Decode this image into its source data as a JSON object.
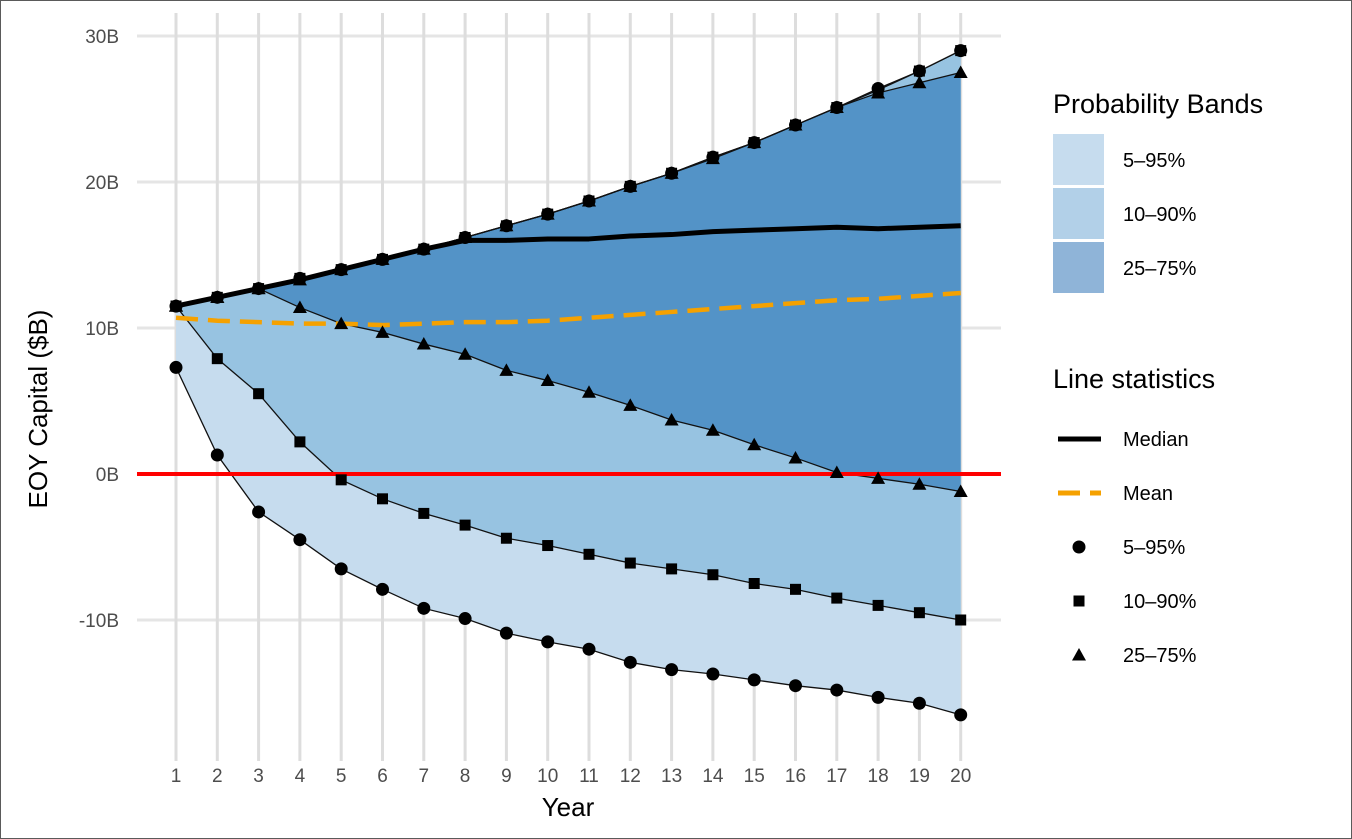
{
  "chart_data": {
    "type": "area",
    "title": "",
    "xlabel": "Year",
    "ylabel": "EOY Capital ($B)",
    "x": [
      1,
      2,
      3,
      4,
      5,
      6,
      7,
      8,
      9,
      10,
      11,
      12,
      13,
      14,
      15,
      16,
      17,
      18,
      19,
      20
    ],
    "x_tick_labels": [
      "1",
      "2",
      "3",
      "4",
      "5",
      "6",
      "7",
      "8",
      "9",
      "10",
      "11",
      "12",
      "13",
      "14",
      "15",
      "16",
      "17",
      "18",
      "19",
      "20"
    ],
    "ylim": [
      -18.5,
      31.2
    ],
    "y_ticks": [
      30,
      20,
      10,
      0,
      -10
    ],
    "y_tick_labels": [
      "30B",
      "20B",
      "10B",
      "0B",
      "-10B"
    ],
    "grid": true,
    "reference_line": {
      "y": 0,
      "color": "#ff0000"
    },
    "bands": [
      {
        "name": "5–95%",
        "color": "#c6dcee",
        "lower": [
          7.3,
          1.3,
          -2.6,
          -4.5,
          -6.5,
          -7.9,
          -9.2,
          -9.9,
          -10.9,
          -11.5,
          -12.0,
          -12.9,
          -13.4,
          -13.7,
          -14.1,
          -14.5,
          -14.8,
          -15.3,
          -15.7,
          -16.5
        ],
        "upper": [
          11.5,
          12.1,
          12.7,
          13.4,
          14.0,
          14.7,
          15.4,
          16.2,
          17.0,
          17.8,
          18.7,
          19.7,
          20.6,
          21.7,
          22.7,
          23.9,
          25.1,
          26.4,
          27.6,
          29.0
        ]
      },
      {
        "name": "10–90%",
        "color": "#97c3e1",
        "lower": [
          11.5,
          7.9,
          5.5,
          2.2,
          -0.4,
          -1.7,
          -2.7,
          -3.5,
          -4.4,
          -4.9,
          -5.5,
          -6.1,
          -6.5,
          -6.9,
          -7.5,
          -7.9,
          -8.5,
          -9.0,
          -9.5,
          -10.0
        ],
        "upper": [
          11.5,
          12.1,
          12.7,
          13.4,
          14.0,
          14.7,
          15.4,
          16.2,
          17.0,
          17.8,
          18.7,
          19.7,
          20.6,
          21.7,
          22.7,
          23.9,
          25.1,
          26.3,
          27.6,
          29.0
        ]
      },
      {
        "name": "25–75%",
        "color": "#4b8ec4",
        "lower": [
          11.5,
          12.1,
          12.7,
          11.4,
          10.3,
          9.7,
          8.9,
          8.2,
          7.1,
          6.4,
          5.6,
          4.7,
          3.7,
          3.0,
          2.0,
          1.1,
          0.1,
          -0.3,
          -0.7,
          -1.2
        ],
        "upper": [
          11.5,
          12.1,
          12.7,
          13.3,
          14.0,
          14.7,
          15.4,
          16.2,
          17.0,
          17.8,
          18.7,
          19.7,
          20.6,
          21.6,
          22.7,
          23.9,
          25.1,
          26.1,
          26.8,
          27.5
        ]
      }
    ],
    "series": [
      {
        "name": "Median",
        "color": "#000000",
        "style": "solid",
        "values": [
          11.5,
          12.1,
          12.7,
          13.3,
          14.0,
          14.7,
          15.4,
          16.0,
          16.0,
          16.1,
          16.1,
          16.3,
          16.4,
          16.6,
          16.7,
          16.8,
          16.9,
          16.8,
          16.9,
          17.0
        ]
      },
      {
        "name": "Mean",
        "color": "#f5a100",
        "style": "dashed",
        "values": [
          10.7,
          10.5,
          10.4,
          10.3,
          10.3,
          10.2,
          10.3,
          10.4,
          10.4,
          10.5,
          10.7,
          10.9,
          11.1,
          11.3,
          11.5,
          11.7,
          11.9,
          12.0,
          12.2,
          12.4
        ]
      }
    ],
    "legend": {
      "placement": "right",
      "bands_title": "Probability Bands",
      "bands": [
        {
          "label": "5–95%",
          "color": "#c6dcee"
        },
        {
          "label": "10–90%",
          "color": "#b2d0e8"
        },
        {
          "label": "25–75%",
          "color": "#8fb4d8"
        }
      ],
      "lines_title": "Line statistics",
      "lines": [
        {
          "label": "Median",
          "kind": "solid-line",
          "color": "#000000"
        },
        {
          "label": "Mean",
          "kind": "dashed-line",
          "color": "#f5a100"
        },
        {
          "label": "5–95%",
          "kind": "circle",
          "color": "#000000"
        },
        {
          "label": "10–90%",
          "kind": "square",
          "color": "#000000"
        },
        {
          "label": "25–75%",
          "kind": "triangle",
          "color": "#000000"
        }
      ]
    }
  }
}
